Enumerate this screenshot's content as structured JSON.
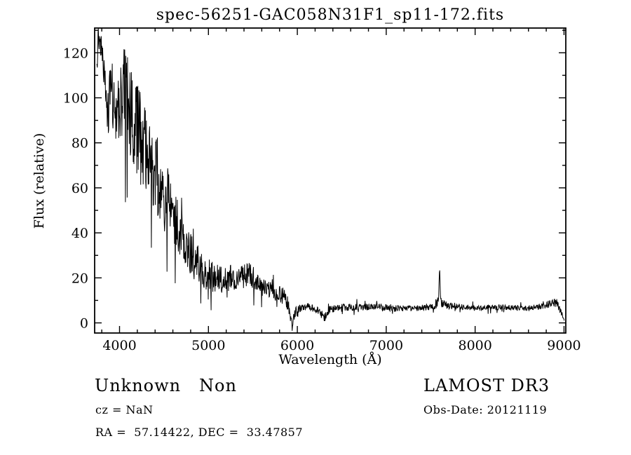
{
  "annotations": {
    "class_label": "Unknown   Non",
    "survey": "LAMOST DR3",
    "cz": "cz = NaN",
    "obs_date": "Obs-Date: 20121119",
    "ra_dec": "RA =  57.14422, DEC =  33.47857"
  },
  "chart_data": {
    "type": "line",
    "title": "spec-56251-GAC058N31F1_sp11-172.fits",
    "xlabel": "Wavelength (Å)",
    "ylabel": "Flux (relative)",
    "xlim": [
      3720,
      9020
    ],
    "ylim": [
      -4.5,
      131
    ],
    "x_ticks": [
      4000,
      5000,
      6000,
      7000,
      8000,
      9000
    ],
    "x_minor_step": 200,
    "y_ticks": [
      0,
      20,
      40,
      60,
      80,
      100,
      120
    ],
    "y_minor_step": 10,
    "grid": false,
    "legend": "none",
    "line_color": "#000000",
    "series": [
      {
        "name": "LAMOST optical spectrum (noisy blue continuum declining to flat red continuum)",
        "color": "#000000",
        "sampling_step_angstrom": 4,
        "wavelength_start": 3742,
        "wavelength_end": 9005,
        "envelope_points_comment": "[wavelength_A, mean_flux, noise_amplitude]",
        "envelope_points": [
          [
            3742,
            118,
            14
          ],
          [
            3770,
            126,
            6
          ],
          [
            3820,
            112,
            10
          ],
          [
            3860,
            92,
            10
          ],
          [
            3900,
            102,
            14
          ],
          [
            3950,
            98,
            16
          ],
          [
            4000,
            100,
            20
          ],
          [
            4060,
            102,
            22
          ],
          [
            4120,
            92,
            24
          ],
          [
            4180,
            88,
            22
          ],
          [
            4250,
            80,
            20
          ],
          [
            4350,
            70,
            18
          ],
          [
            4450,
            62,
            16
          ],
          [
            4550,
            54,
            14
          ],
          [
            4650,
            44,
            12
          ],
          [
            4750,
            34,
            10
          ],
          [
            4850,
            27,
            9
          ],
          [
            4950,
            23,
            8
          ],
          [
            5050,
            20,
            7
          ],
          [
            5150,
            19,
            6
          ],
          [
            5250,
            20,
            6
          ],
          [
            5350,
            21,
            6
          ],
          [
            5450,
            22,
            6
          ],
          [
            5550,
            18,
            5
          ],
          [
            5650,
            15,
            4
          ],
          [
            5750,
            14,
            4
          ],
          [
            5850,
            12,
            4
          ],
          [
            5900,
            8,
            3
          ],
          [
            5940,
            -1,
            3
          ],
          [
            5980,
            4,
            3
          ],
          [
            6050,
            7,
            2
          ],
          [
            6150,
            7,
            1.6
          ],
          [
            6250,
            5,
            1.6
          ],
          [
            6300,
            2,
            2.5
          ],
          [
            6360,
            6,
            1.6
          ],
          [
            6500,
            7,
            1.6
          ],
          [
            6700,
            7,
            1.5
          ],
          [
            6900,
            7,
            1.5
          ],
          [
            7100,
            6.5,
            1.3
          ],
          [
            7300,
            6.5,
            1.3
          ],
          [
            7500,
            7,
            1.3
          ],
          [
            7580,
            8,
            1.6
          ],
          [
            7620,
            9,
            2
          ],
          [
            7700,
            7.5,
            1.4
          ],
          [
            7900,
            7,
            1.2
          ],
          [
            8100,
            6.5,
            1.2
          ],
          [
            8300,
            7,
            1.2
          ],
          [
            8500,
            6.5,
            1.2
          ],
          [
            8700,
            7,
            1.3
          ],
          [
            8850,
            8.5,
            1.8
          ],
          [
            8920,
            9,
            2
          ],
          [
            8970,
            5,
            2
          ],
          [
            9005,
            0.5,
            0.5
          ]
        ],
        "emission_line": {
          "center": 7600,
          "sigma": 7,
          "amplitude": 13.5,
          "peak_flux": 21
        }
      }
    ]
  }
}
